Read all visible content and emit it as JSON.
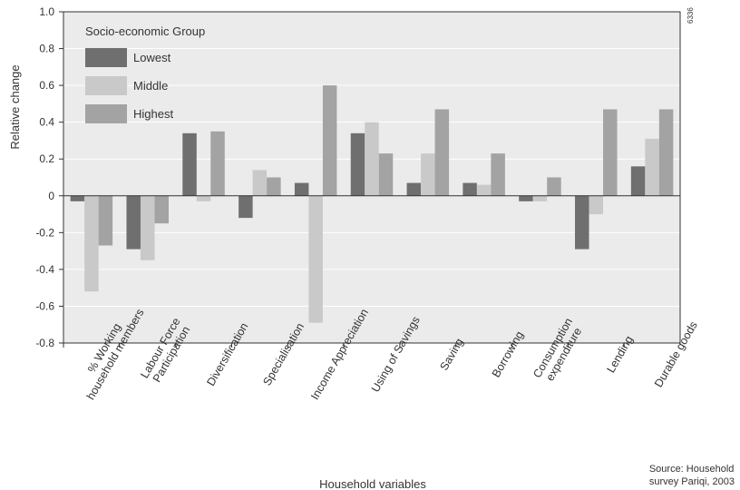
{
  "figure_id": "6336",
  "source": {
    "line1": "Source: Household",
    "line2": "survey Pariqi, 2003"
  },
  "colors": {
    "lowest": "#6f6f6f",
    "middle": "#c9c9c9",
    "highest": "#a3a3a3",
    "plot_bg": "#ebebeb",
    "grid": "#ffffff",
    "axis": "#333333"
  },
  "chart_data": {
    "type": "bar",
    "xlabel": "Household variables",
    "ylabel": "Relative change",
    "ylim": [
      -0.8,
      1.0
    ],
    "yticks": [
      1.0,
      0.8,
      0.6,
      0.4,
      0.2,
      0,
      -0.2,
      -0.4,
      -0.6,
      -0.8
    ],
    "ytick_labels": [
      "1.0",
      "0.8",
      "0.6",
      "0.4",
      "0.2",
      "0",
      "-0.2",
      "-0.4",
      "-0.6",
      "-0.8"
    ],
    "grid": true,
    "legend": {
      "title": "Socio-economic Group",
      "placement": "top-left"
    },
    "categories": [
      [
        "% Working",
        "household members"
      ],
      [
        "Labour Force",
        "Participation"
      ],
      [
        "Diversification"
      ],
      [
        "Specialisation"
      ],
      [
        "Income Appreciation"
      ],
      [
        "Using of Savings"
      ],
      [
        "Saving"
      ],
      [
        "Borrowing"
      ],
      [
        "Consumption",
        "expenditure"
      ],
      [
        "Lending"
      ],
      [
        "Durable goods"
      ]
    ],
    "series": [
      {
        "name": "Lowest",
        "values": [
          -0.03,
          -0.29,
          0.34,
          -0.12,
          0.07,
          0.34,
          0.07,
          0.07,
          -0.03,
          -0.29,
          0.16
        ]
      },
      {
        "name": "Middle",
        "values": [
          -0.52,
          -0.35,
          -0.03,
          0.14,
          -0.69,
          0.4,
          0.23,
          0.06,
          -0.03,
          -0.1,
          0.31
        ]
      },
      {
        "name": "Highest",
        "values": [
          -0.27,
          -0.15,
          0.35,
          0.1,
          0.6,
          0.23,
          0.47,
          0.23,
          0.1,
          0.47,
          0.47
        ]
      }
    ]
  }
}
